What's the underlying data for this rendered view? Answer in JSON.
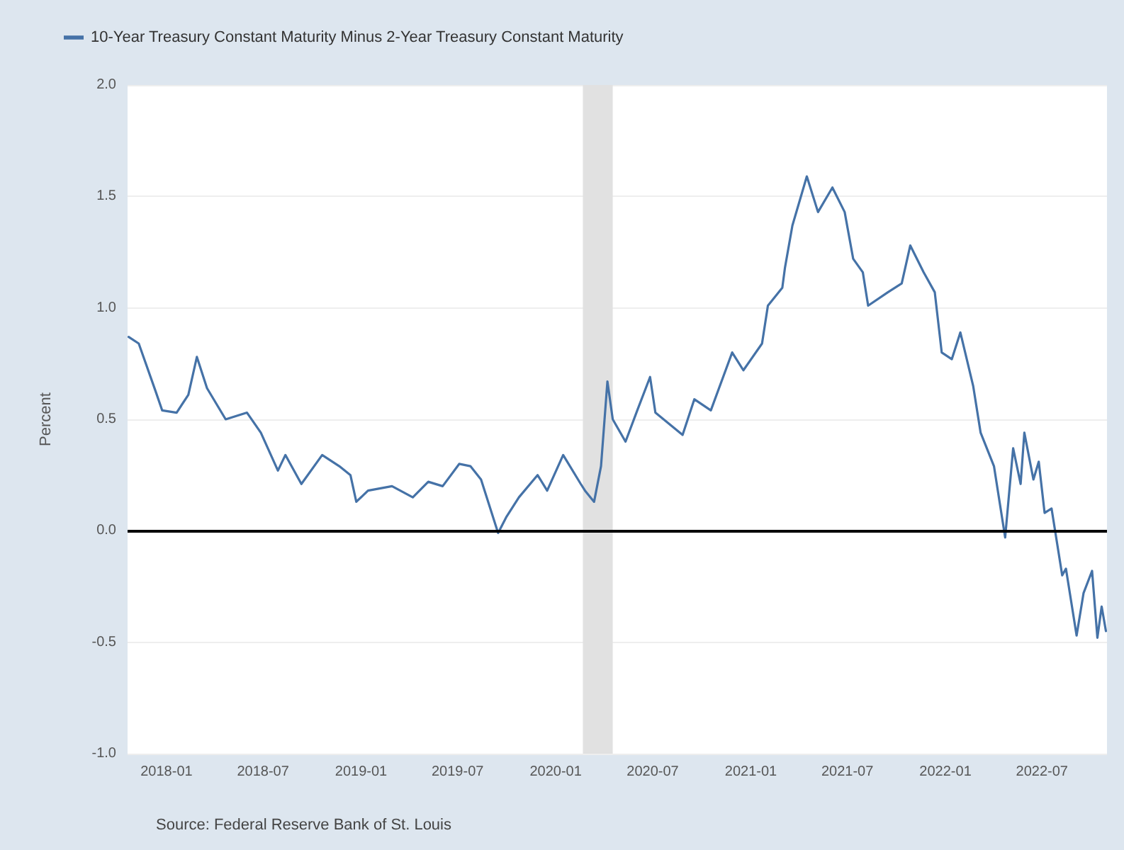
{
  "chart_data": {
    "type": "line",
    "ylabel": "Percent",
    "legend": "top left",
    "grid": "y",
    "marker": "none",
    "line_style": "solid",
    "annotations": [
      "Source: Federal Reserve Bank of St. Louis"
    ],
    "xlim": [
      "2017-10-20",
      "2022-10-31"
    ],
    "xticks": [
      "2018-01",
      "2018-07",
      "2019-01",
      "2019-07",
      "2020-01",
      "2020-07",
      "2021-01",
      "2021-07",
      "2022-01",
      "2022-07"
    ],
    "ylim": [
      -1,
      2
    ],
    "yticks": [
      {
        "value": -1,
        "label": "-1.0"
      },
      {
        "value": -0.5,
        "label": "-0.5"
      },
      {
        "value": 0,
        "label": "0.0"
      },
      {
        "value": 0.5,
        "label": "0.5"
      },
      {
        "value": 1,
        "label": "1.0"
      },
      {
        "value": 1.5,
        "label": "1.5"
      },
      {
        "value": 2,
        "label": "2.0"
      }
    ],
    "ref_lines": [
      {
        "axis": "y",
        "value": 0,
        "color": "#000000"
      }
    ],
    "bands": [
      {
        "axis": "x",
        "from": "2020-02-21",
        "to": "2020-04-17",
        "color": "#e1e1e1"
      }
    ],
    "x": [
      "2017-10-22",
      "2017-11-10",
      "2017-12-11",
      "2017-12-24",
      "2018-01-20",
      "2018-02-11",
      "2018-02-27",
      "2018-03-18",
      "2018-04-22",
      "2018-06-01",
      "2018-06-27",
      "2018-07-29",
      "2018-08-12",
      "2018-09-11",
      "2018-10-20",
      "2018-11-21",
      "2018-12-12",
      "2018-12-23",
      "2019-01-14",
      "2019-02-28",
      "2019-04-08",
      "2019-05-07",
      "2019-06-03",
      "2019-07-04",
      "2019-07-25",
      "2019-08-14",
      "2019-09-15",
      "2019-09-30",
      "2019-10-24",
      "2019-11-28",
      "2019-12-16",
      "2020-01-15",
      "2020-02-17",
      "2020-02-25",
      "2020-03-13",
      "2020-03-26",
      "2020-04-07",
      "2020-04-17",
      "2020-05-11",
      "2020-06-02",
      "2020-06-26",
      "2020-07-06",
      "2020-08-26",
      "2020-09-17",
      "2020-10-18",
      "2020-11-27",
      "2020-12-18",
      "2021-01-22",
      "2021-02-02",
      "2021-03-01",
      "2021-03-06",
      "2021-03-20",
      "2021-04-16",
      "2021-05-07",
      "2021-06-03",
      "2021-06-26",
      "2021-07-12",
      "2021-07-30",
      "2021-08-09",
      "2021-09-15",
      "2021-10-11",
      "2021-10-27",
      "2021-11-21",
      "2021-12-12",
      "2021-12-25",
      "2022-01-13",
      "2022-01-29",
      "2022-02-22",
      "2022-03-08",
      "2022-04-02",
      "2022-04-23",
      "2022-05-08",
      "2022-05-22",
      "2022-05-29",
      "2022-06-15",
      "2022-06-25",
      "2022-07-06",
      "2022-07-19",
      "2022-08-08",
      "2022-08-15",
      "2022-09-04",
      "2022-09-17",
      "2022-10-03",
      "2022-10-13",
      "2022-10-21",
      "2022-10-29"
    ],
    "series": [
      {
        "name": "10-Year Treasury Constant Maturity Minus 2-Year Treasury Constant Maturity",
        "color": "#4572a7",
        "values": [
          0.87,
          0.84,
          0.63,
          0.54,
          0.53,
          0.61,
          0.78,
          0.64,
          0.5,
          0.53,
          0.44,
          0.27,
          0.34,
          0.21,
          0.34,
          0.29,
          0.25,
          0.13,
          0.18,
          0.2,
          0.15,
          0.22,
          0.2,
          0.3,
          0.29,
          0.23,
          -0.01,
          0.06,
          0.15,
          0.25,
          0.18,
          0.34,
          0.21,
          0.18,
          0.13,
          0.29,
          0.67,
          0.5,
          0.4,
          0.54,
          0.69,
          0.53,
          0.43,
          0.59,
          0.54,
          0.8,
          0.72,
          0.84,
          1.01,
          1.09,
          1.18,
          1.37,
          1.59,
          1.43,
          1.54,
          1.43,
          1.22,
          1.16,
          1.01,
          1.07,
          1.11,
          1.28,
          1.16,
          1.07,
          0.8,
          0.77,
          0.89,
          0.65,
          0.44,
          0.29,
          -0.03,
          0.37,
          0.21,
          0.44,
          0.23,
          0.31,
          0.08,
          0.1,
          -0.2,
          -0.17,
          -0.47,
          -0.28,
          -0.18,
          -0.48,
          -0.34,
          -0.45
        ]
      }
    ]
  }
}
